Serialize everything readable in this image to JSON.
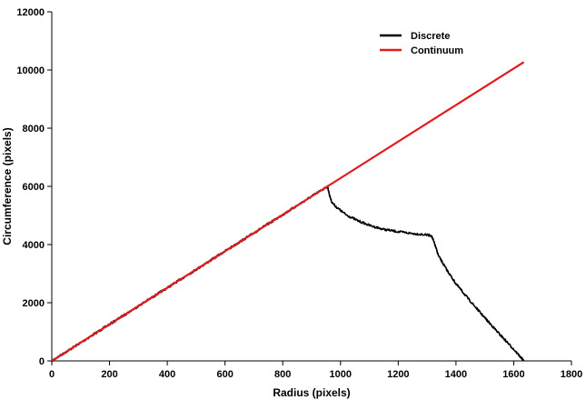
{
  "chart_data": {
    "type": "line",
    "title": "",
    "xlabel": "Radius (pixels)",
    "ylabel": "Circumference (pixels)",
    "xlim": [
      0,
      1800
    ],
    "ylim": [
      0,
      12000
    ],
    "x_ticks": [
      0,
      200,
      400,
      600,
      800,
      1000,
      1200,
      1400,
      1600,
      1800
    ],
    "y_ticks": [
      0,
      2000,
      4000,
      6000,
      8000,
      10000,
      12000
    ],
    "grid": false,
    "legend_position": "top-right",
    "series": [
      {
        "name": "Discrete",
        "color": "#000000",
        "noisy": true,
        "points": [
          [
            0,
            0
          ],
          [
            100,
            628
          ],
          [
            200,
            1257
          ],
          [
            300,
            1885
          ],
          [
            400,
            2513
          ],
          [
            500,
            3142
          ],
          [
            600,
            3770
          ],
          [
            700,
            4398
          ],
          [
            800,
            5027
          ],
          [
            900,
            5655
          ],
          [
            955,
            6000
          ],
          [
            962,
            5700
          ],
          [
            970,
            5450
          ],
          [
            990,
            5250
          ],
          [
            1020,
            5020
          ],
          [
            1060,
            4820
          ],
          [
            1100,
            4660
          ],
          [
            1150,
            4520
          ],
          [
            1200,
            4440
          ],
          [
            1250,
            4380
          ],
          [
            1290,
            4340
          ],
          [
            1315,
            4310
          ],
          [
            1325,
            4050
          ],
          [
            1340,
            3600
          ],
          [
            1370,
            3100
          ],
          [
            1400,
            2650
          ],
          [
            1450,
            2050
          ],
          [
            1500,
            1480
          ],
          [
            1550,
            930
          ],
          [
            1600,
            400
          ],
          [
            1630,
            60
          ],
          [
            1635,
            0
          ]
        ]
      },
      {
        "name": "Continuum",
        "color": "#e31a1c",
        "noisy": false,
        "points": [
          [
            0,
            0
          ],
          [
            1635,
            10273
          ]
        ]
      }
    ]
  }
}
